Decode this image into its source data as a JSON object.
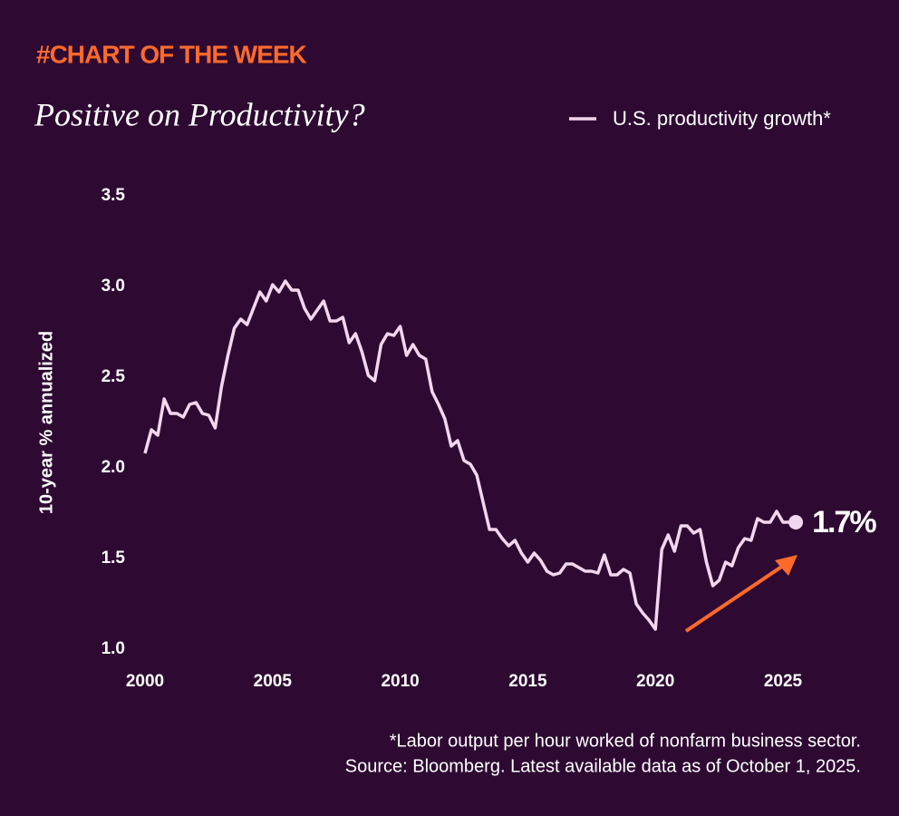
{
  "chart_data": {
    "type": "line",
    "kicker": "#CHART OF THE WEEK",
    "title": "Positive on Productivity?",
    "ylabel": "10-year % annualized",
    "footnote": "*Labor output per hour worked of nonfarm business sector.",
    "source": "Source: Bloomberg. Latest available data as of October 1, 2025.",
    "x": [
      2000,
      2000.25,
      2000.5,
      2000.75,
      2001,
      2001.25,
      2001.5,
      2001.75,
      2002,
      2002.25,
      2002.5,
      2002.75,
      2003,
      2003.25,
      2003.5,
      2003.75,
      2004,
      2004.25,
      2004.5,
      2004.75,
      2005,
      2005.25,
      2005.5,
      2005.75,
      2006,
      2006.25,
      2006.5,
      2006.75,
      2007,
      2007.25,
      2007.5,
      2007.75,
      2008,
      2008.25,
      2008.5,
      2008.75,
      2009,
      2009.25,
      2009.5,
      2009.75,
      2010,
      2010.25,
      2010.5,
      2010.75,
      2011,
      2011.25,
      2011.5,
      2011.75,
      2012,
      2012.25,
      2012.5,
      2012.75,
      2013,
      2013.25,
      2013.5,
      2013.75,
      2014,
      2014.25,
      2014.5,
      2014.75,
      2015,
      2015.25,
      2015.5,
      2015.75,
      2016,
      2016.25,
      2016.5,
      2016.75,
      2017,
      2017.25,
      2017.5,
      2017.75,
      2018,
      2018.25,
      2018.5,
      2018.75,
      2019,
      2019.25,
      2019.5,
      2019.75,
      2020,
      2020.25,
      2020.5,
      2020.75,
      2021,
      2021.25,
      2021.5,
      2021.75,
      2022,
      2022.25,
      2022.5,
      2022.75,
      2023,
      2023.25,
      2023.5,
      2023.75,
      2024,
      2024.25,
      2024.5,
      2024.75,
      2025,
      2025.25,
      2025.5
    ],
    "series": [
      {
        "name": "U.S. productivity growth*",
        "color": "#f3d6ef",
        "end_label": "1.7%",
        "values": [
          2.08,
          2.21,
          2.18,
          2.38,
          2.3,
          2.3,
          2.28,
          2.35,
          2.36,
          2.3,
          2.29,
          2.22,
          2.45,
          2.62,
          2.77,
          2.82,
          2.79,
          2.88,
          2.97,
          2.92,
          3.01,
          2.97,
          3.03,
          2.98,
          2.98,
          2.88,
          2.82,
          2.87,
          2.92,
          2.81,
          2.81,
          2.83,
          2.69,
          2.74,
          2.64,
          2.51,
          2.48,
          2.68,
          2.74,
          2.73,
          2.78,
          2.62,
          2.68,
          2.62,
          2.6,
          2.42,
          2.35,
          2.27,
          2.12,
          2.15,
          2.04,
          2.02,
          1.96,
          1.81,
          1.66,
          1.66,
          1.61,
          1.57,
          1.6,
          1.53,
          1.48,
          1.53,
          1.49,
          1.43,
          1.41,
          1.42,
          1.47,
          1.47,
          1.45,
          1.43,
          1.43,
          1.42,
          1.52,
          1.41,
          1.41,
          1.44,
          1.42,
          1.25,
          1.2,
          1.16,
          1.11,
          1.55,
          1.63,
          1.54,
          1.68,
          1.68,
          1.64,
          1.66,
          1.48,
          1.35,
          1.38,
          1.48,
          1.46,
          1.56,
          1.61,
          1.6,
          1.72,
          1.7,
          1.7,
          1.76,
          1.7,
          1.7,
          1.7
        ]
      }
    ],
    "xlim": [
      2000,
      2026
    ],
    "xticks": [
      2000,
      2005,
      2010,
      2015,
      2020,
      2025
    ],
    "ylim": [
      1,
      3.5
    ],
    "yticks": [
      {
        "value": 1,
        "label": "1.0"
      },
      1.5,
      {
        "value": 2,
        "label": "2.0"
      },
      2.5,
      {
        "value": 3,
        "label": "3.0"
      },
      3.5
    ],
    "grid": false,
    "legend": "top-right"
  }
}
